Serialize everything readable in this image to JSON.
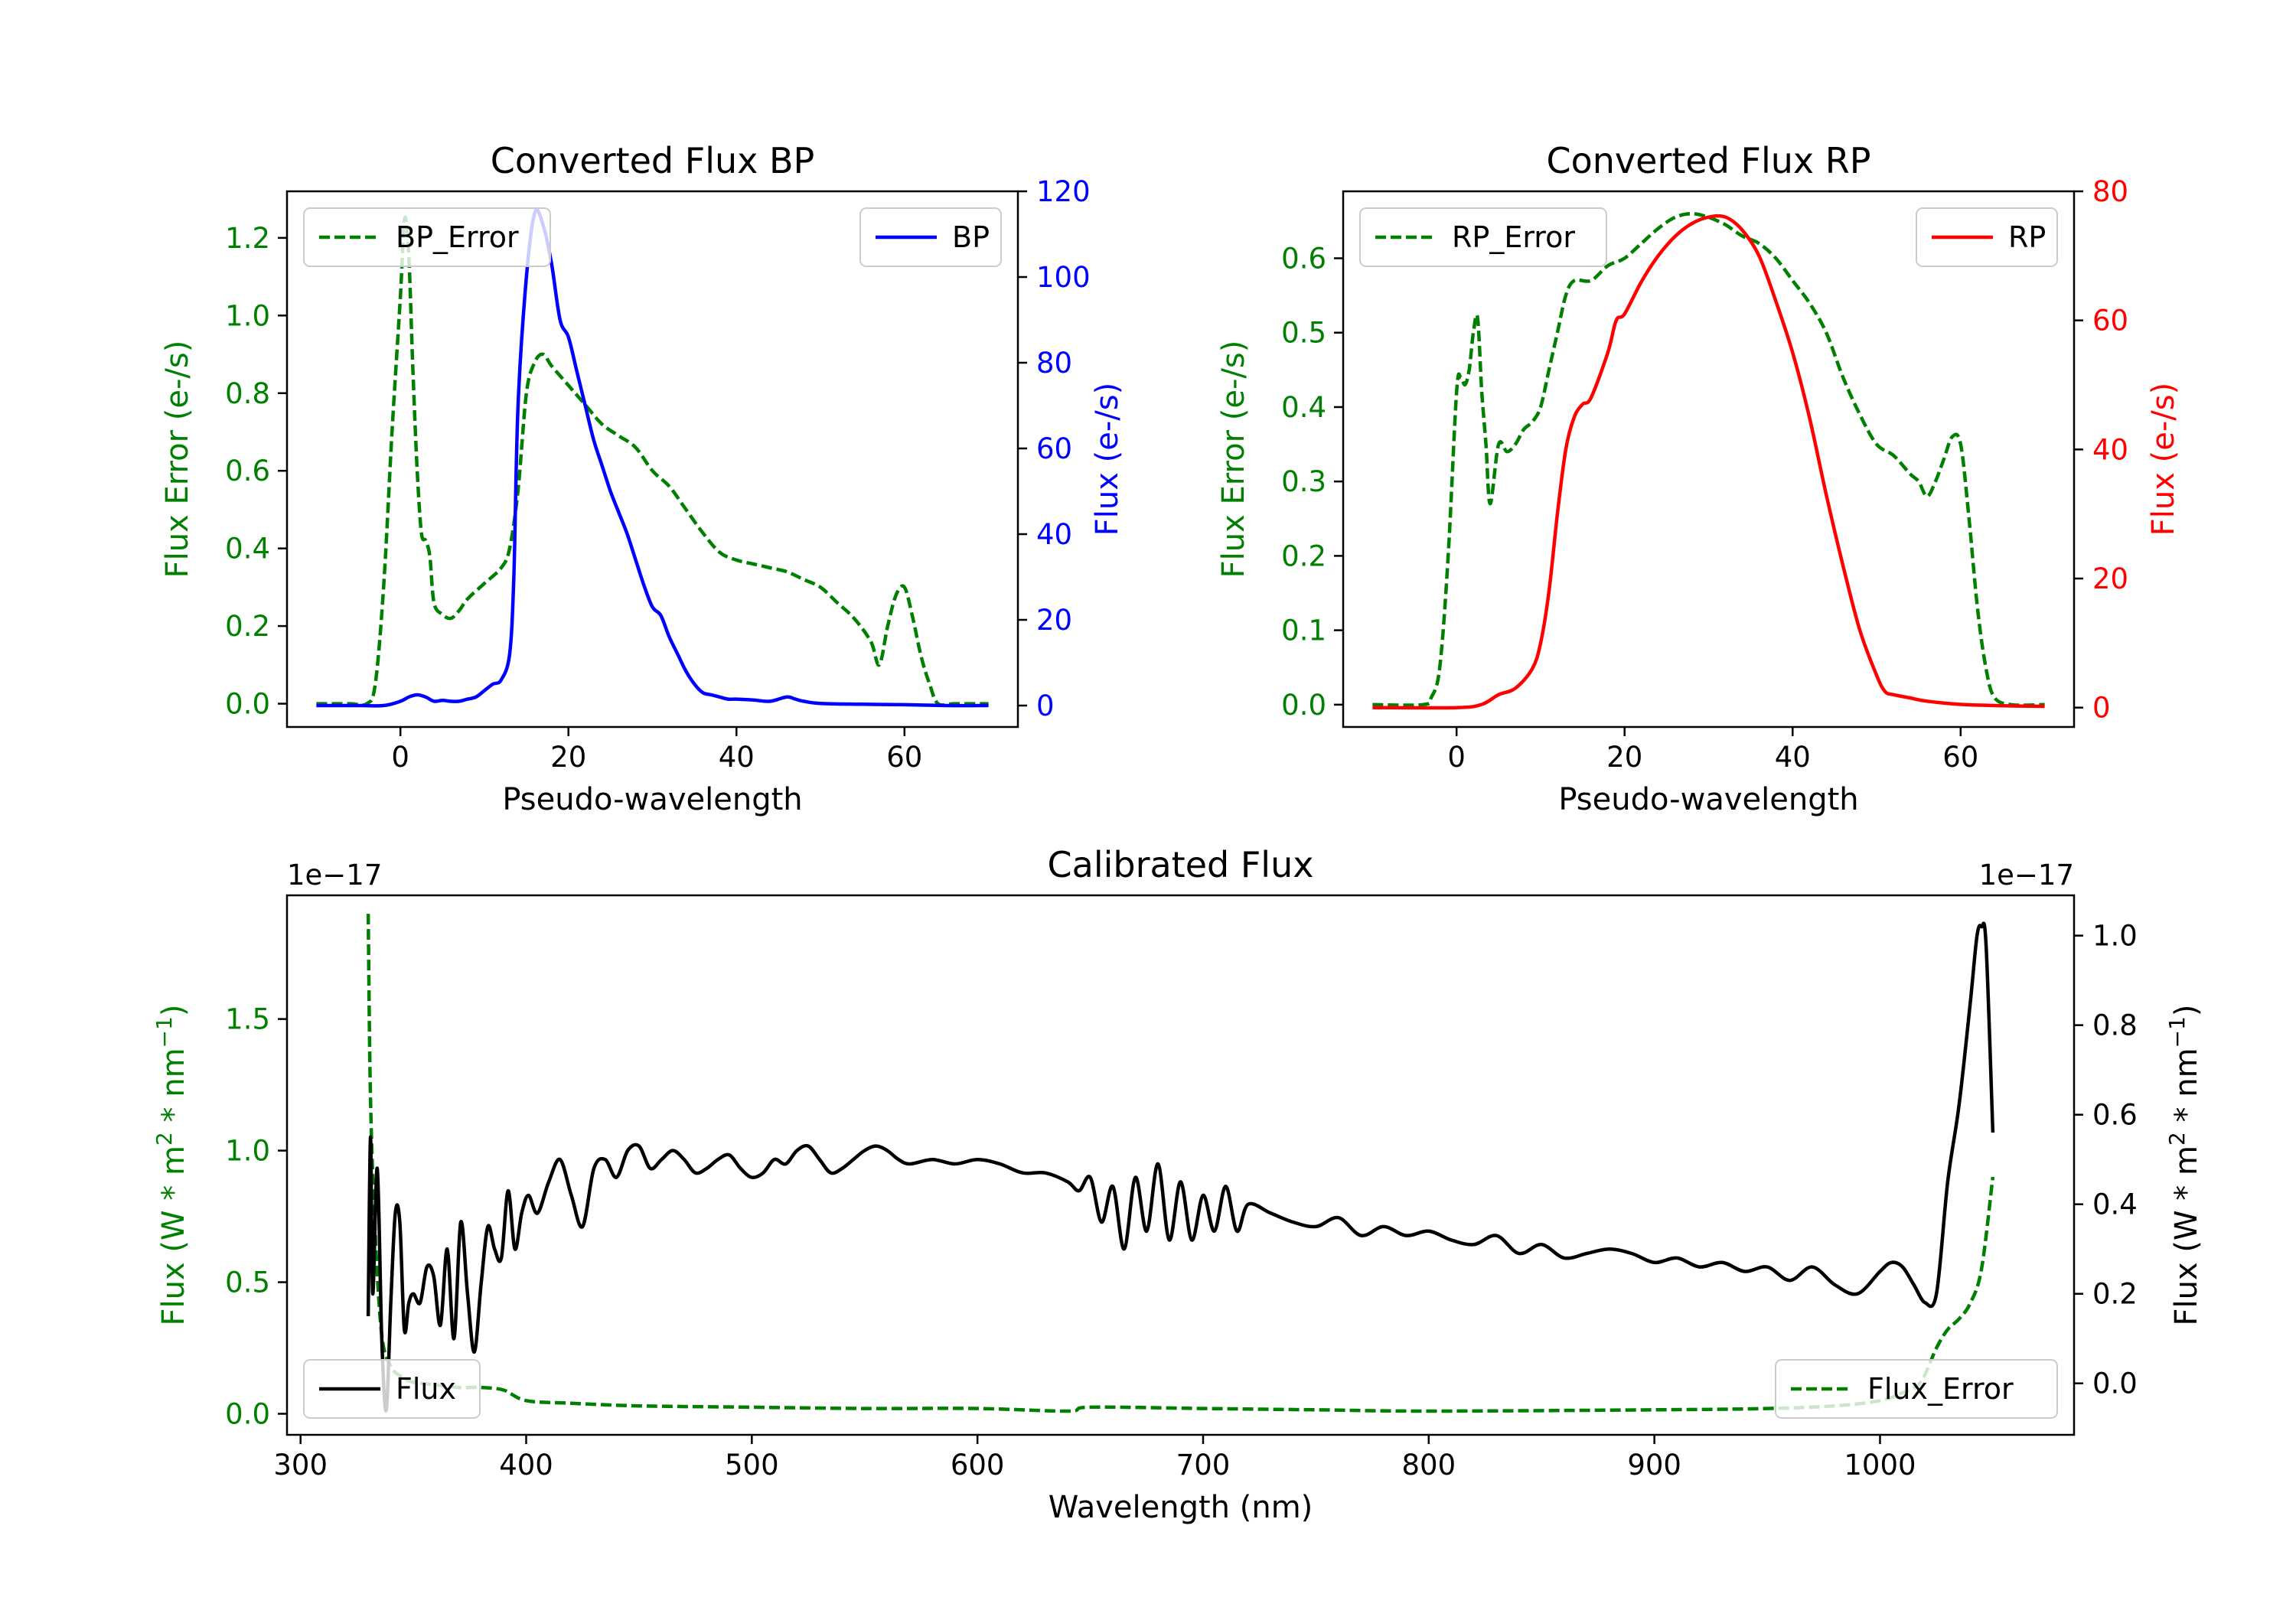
{
  "chart_data": [
    {
      "id": "bp",
      "type": "line",
      "title": "Converted Flux BP",
      "xlabel": "Pseudo-wavelength",
      "xlim": [
        -13.5,
        73.5
      ],
      "xticks": [
        0,
        20,
        40,
        60
      ],
      "left_axis": {
        "label": "Flux Error (e-/s)",
        "color": "#008000",
        "ylim": [
          -0.06,
          1.32
        ],
        "ticks": [
          0.0,
          0.2,
          0.4,
          0.6,
          0.8,
          1.0,
          1.2
        ],
        "tick_labels": [
          "0.0",
          "0.2",
          "0.4",
          "0.6",
          "0.8",
          "1.0",
          "1.2"
        ]
      },
      "right_axis": {
        "label": "Flux (e-/s)",
        "color": "#0000ff",
        "ylim": [
          -5,
          120
        ],
        "ticks": [
          0,
          20,
          40,
          60,
          80,
          100,
          120
        ],
        "tick_labels": [
          "0",
          "20",
          "40",
          "60",
          "80",
          "100",
          "120"
        ]
      },
      "series": [
        {
          "name": "BP_Error",
          "axis": "left",
          "color": "#008000",
          "style": "dashed",
          "x": [
            -10,
            -6,
            -4,
            -3,
            -2,
            -1,
            0,
            0.5,
            1,
            1.5,
            2,
            2.5,
            3,
            3.5,
            4,
            5,
            6,
            7,
            8,
            10,
            12,
            13,
            14,
            15,
            16,
            17,
            18,
            20,
            22,
            24,
            26,
            28,
            30,
            32,
            34,
            36,
            38,
            40,
            42,
            44,
            46,
            48,
            50,
            52,
            54,
            56,
            57,
            58,
            59,
            60,
            61,
            62,
            63,
            64,
            66,
            70
          ],
          "y": [
            0.0,
            0.0,
            0.0,
            0.05,
            0.3,
            0.7,
            1.05,
            1.25,
            1.15,
            0.85,
            0.6,
            0.44,
            0.42,
            0.38,
            0.26,
            0.23,
            0.22,
            0.24,
            0.27,
            0.31,
            0.35,
            0.4,
            0.55,
            0.8,
            0.88,
            0.9,
            0.87,
            0.82,
            0.77,
            0.72,
            0.69,
            0.66,
            0.6,
            0.56,
            0.5,
            0.44,
            0.39,
            0.37,
            0.36,
            0.35,
            0.34,
            0.32,
            0.3,
            0.26,
            0.22,
            0.16,
            0.1,
            0.2,
            0.28,
            0.3,
            0.22,
            0.12,
            0.05,
            0.0,
            0.0,
            0.0
          ]
        },
        {
          "name": "BP",
          "axis": "right",
          "color": "#0000ff",
          "style": "solid",
          "x": [
            -10,
            -5,
            -2,
            0,
            1,
            2,
            3,
            4,
            5,
            6,
            7,
            8,
            9,
            10,
            11,
            12,
            13,
            13.5,
            14,
            15,
            16,
            17,
            18,
            19,
            20,
            21,
            22,
            23,
            24,
            25,
            26,
            27,
            28,
            29,
            30,
            31,
            32,
            33,
            34,
            35,
            36,
            37,
            38,
            39,
            40,
            42,
            44,
            46,
            47,
            48,
            50,
            55,
            60,
            65,
            70
          ],
          "y": [
            0,
            0,
            0,
            1,
            2,
            2.5,
            2,
            1,
            1.2,
            1,
            1,
            1.5,
            2,
            3.5,
            5,
            6,
            12,
            30,
            70,
            100,
            115,
            112,
            103,
            90,
            86,
            78,
            70,
            62,
            56,
            50,
            45,
            40,
            34,
            28,
            23,
            21,
            16,
            12,
            8,
            5,
            3,
            2.5,
            2,
            1.5,
            1.5,
            1.3,
            1,
            2,
            1.5,
            1,
            0.5,
            0.3,
            0.2,
            0,
            0
          ]
        }
      ]
    },
    {
      "id": "rp",
      "type": "line",
      "title": "Converted Flux RP",
      "xlabel": "Pseudo-wavelength",
      "xlim": [
        -13.5,
        73.5
      ],
      "xticks": [
        0,
        20,
        40,
        60
      ],
      "left_axis": {
        "label": "Flux Error (e-/s)",
        "color": "#008000",
        "ylim": [
          -0.03,
          0.69
        ],
        "ticks": [
          0.0,
          0.1,
          0.2,
          0.3,
          0.4,
          0.5,
          0.6
        ],
        "tick_labels": [
          "0.0",
          "0.1",
          "0.2",
          "0.3",
          "0.4",
          "0.5",
          "0.6"
        ]
      },
      "right_axis": {
        "label": "Flux (e-/s)",
        "color": "#ff0000",
        "ylim": [
          -3,
          80
        ],
        "ticks": [
          0,
          20,
          40,
          60,
          80
        ],
        "tick_labels": [
          "0",
          "20",
          "40",
          "60",
          "80"
        ]
      },
      "series": [
        {
          "name": "RP_Error",
          "axis": "left",
          "color": "#008000",
          "style": "dashed",
          "x": [
            -10,
            -4,
            -3,
            -2,
            -1,
            0,
            0.5,
            1,
            1.5,
            2,
            2.5,
            3,
            3.5,
            4,
            5,
            6,
            7,
            8,
            9,
            10,
            11,
            12,
            13,
            14,
            16,
            18,
            20,
            22,
            24,
            26,
            28,
            30,
            32,
            34,
            36,
            38,
            40,
            42,
            44,
            46,
            48,
            50,
            52,
            54,
            55,
            56,
            57,
            58,
            59,
            60,
            61,
            62,
            63,
            64,
            66,
            70
          ],
          "y": [
            0.0,
            0.0,
            0.01,
            0.05,
            0.2,
            0.42,
            0.44,
            0.43,
            0.45,
            0.5,
            0.52,
            0.42,
            0.35,
            0.27,
            0.35,
            0.34,
            0.35,
            0.37,
            0.38,
            0.4,
            0.45,
            0.5,
            0.55,
            0.57,
            0.57,
            0.59,
            0.6,
            0.62,
            0.64,
            0.655,
            0.66,
            0.655,
            0.645,
            0.63,
            0.62,
            0.6,
            0.57,
            0.54,
            0.5,
            0.44,
            0.39,
            0.35,
            0.335,
            0.31,
            0.3,
            0.28,
            0.3,
            0.33,
            0.36,
            0.35,
            0.25,
            0.13,
            0.05,
            0.01,
            0.0,
            0.0
          ]
        },
        {
          "name": "RP",
          "axis": "right",
          "color": "#ff0000",
          "style": "solid",
          "x": [
            -10,
            0,
            3,
            5,
            7,
            9,
            10,
            11,
            12,
            13,
            14,
            15,
            16,
            18,
            19,
            20,
            22,
            24,
            26,
            28,
            30,
            32,
            34,
            36,
            38,
            40,
            42,
            44,
            46,
            48,
            50,
            51,
            52,
            54,
            56,
            60,
            65,
            70
          ],
          "y": [
            0,
            0,
            0.5,
            2,
            3,
            6,
            10,
            18,
            30,
            40,
            45,
            47,
            48,
            55,
            60,
            61,
            66,
            70,
            73,
            75,
            76,
            76,
            74,
            70,
            63,
            55,
            45,
            33,
            22,
            12,
            5,
            2.5,
            2,
            1.5,
            1,
            0.5,
            0.3,
            0.2
          ]
        }
      ]
    },
    {
      "id": "cal",
      "type": "line",
      "title": "Calibrated Flux",
      "xlabel": "Wavelength (nm)",
      "xlim": [
        294,
        1086
      ],
      "xticks": [
        300,
        400,
        500,
        600,
        700,
        800,
        900,
        1000
      ],
      "left_axis": {
        "label": "Flux (W * m^2 * nm^-1)",
        "color": "#008000",
        "offset": "1e−17",
        "ylim": [
          -0.08,
          1.97
        ],
        "ticks": [
          0.0,
          0.5,
          1.0,
          1.5
        ],
        "tick_labels": [
          "0.0",
          "0.5",
          "1.0",
          "1.5"
        ]
      },
      "right_axis": {
        "label": "Flux (W * m^2 * nm^-1)",
        "color": "#000000",
        "offset": "1e−17",
        "ylim": [
          -0.115,
          1.09
        ],
        "ticks": [
          0.0,
          0.2,
          0.4,
          0.6,
          0.8,
          1.0
        ],
        "tick_labels": [
          "0.0",
          "0.2",
          "0.4",
          "0.6",
          "0.8",
          "1.0"
        ]
      },
      "series": [
        {
          "name": "Flux_Error",
          "axis": "left",
          "color": "#008000",
          "style": "dashed",
          "x": [
            330,
            331,
            333,
            336,
            340,
            345,
            350,
            360,
            370,
            380,
            390,
            400,
            420,
            450,
            500,
            550,
            600,
            640,
            650,
            700,
            750,
            800,
            900,
            950,
            980,
            1000,
            1010,
            1018,
            1025,
            1030,
            1035,
            1040,
            1045,
            1050
          ],
          "y": [
            1.9,
            1.2,
            0.7,
            0.3,
            0.18,
            0.14,
            0.12,
            0.11,
            0.1,
            0.1,
            0.09,
            0.05,
            0.04,
            0.03,
            0.025,
            0.02,
            0.02,
            0.01,
            0.025,
            0.02,
            0.015,
            0.01,
            0.015,
            0.02,
            0.03,
            0.05,
            0.08,
            0.12,
            0.25,
            0.32,
            0.36,
            0.42,
            0.55,
            0.9
          ]
        },
        {
          "name": "Flux",
          "axis": "right",
          "color": "#000000",
          "style": "solid",
          "resampled": true,
          "x": [
            330,
            331,
            332,
            334,
            336,
            338,
            340,
            342,
            344,
            346,
            348,
            350,
            353,
            356,
            359,
            362,
            365,
            368,
            371,
            374,
            377,
            380,
            383,
            386,
            389,
            392,
            395,
            398,
            401,
            405,
            410,
            415,
            420,
            425,
            430,
            435,
            440,
            445,
            450,
            455,
            460,
            465,
            470,
            475,
            480,
            485,
            490,
            495,
            500,
            505,
            510,
            515,
            520,
            525,
            530,
            535,
            540,
            545,
            550,
            555,
            560,
            565,
            570,
            580,
            590,
            600,
            610,
            620,
            630,
            640,
            645,
            650,
            655,
            660,
            665,
            670,
            675,
            680,
            685,
            690,
            695,
            700,
            705,
            710,
            715,
            720,
            730,
            740,
            750,
            760,
            770,
            780,
            790,
            800,
            810,
            820,
            830,
            840,
            850,
            860,
            870,
            880,
            890,
            900,
            910,
            920,
            930,
            940,
            950,
            960,
            970,
            980,
            990,
            1000,
            1005,
            1010,
            1015,
            1020,
            1025,
            1030,
            1035,
            1040,
            1043,
            1045,
            1047,
            1050
          ],
          "y": [
            0.15,
            0.55,
            0.2,
            0.48,
            0.1,
            -0.06,
            0.18,
            0.38,
            0.36,
            0.12,
            0.18,
            0.2,
            0.18,
            0.26,
            0.24,
            0.13,
            0.3,
            0.1,
            0.36,
            0.2,
            0.07,
            0.22,
            0.35,
            0.3,
            0.28,
            0.43,
            0.3,
            0.38,
            0.42,
            0.38,
            0.45,
            0.5,
            0.42,
            0.35,
            0.48,
            0.5,
            0.46,
            0.52,
            0.53,
            0.48,
            0.5,
            0.52,
            0.5,
            0.47,
            0.48,
            0.5,
            0.51,
            0.48,
            0.46,
            0.47,
            0.5,
            0.49,
            0.52,
            0.53,
            0.5,
            0.47,
            0.48,
            0.5,
            0.52,
            0.53,
            0.52,
            0.5,
            0.49,
            0.5,
            0.49,
            0.5,
            0.49,
            0.47,
            0.47,
            0.45,
            0.43,
            0.46,
            0.36,
            0.44,
            0.3,
            0.46,
            0.34,
            0.49,
            0.32,
            0.45,
            0.32,
            0.42,
            0.34,
            0.44,
            0.34,
            0.4,
            0.38,
            0.36,
            0.35,
            0.37,
            0.33,
            0.35,
            0.33,
            0.34,
            0.32,
            0.31,
            0.33,
            0.29,
            0.31,
            0.28,
            0.29,
            0.3,
            0.29,
            0.27,
            0.28,
            0.26,
            0.27,
            0.25,
            0.26,
            0.23,
            0.26,
            0.22,
            0.2,
            0.25,
            0.27,
            0.26,
            0.22,
            0.18,
            0.2,
            0.45,
            0.62,
            0.85,
            1.0,
            1.02,
            0.98,
            0.56
          ]
        }
      ]
    }
  ]
}
